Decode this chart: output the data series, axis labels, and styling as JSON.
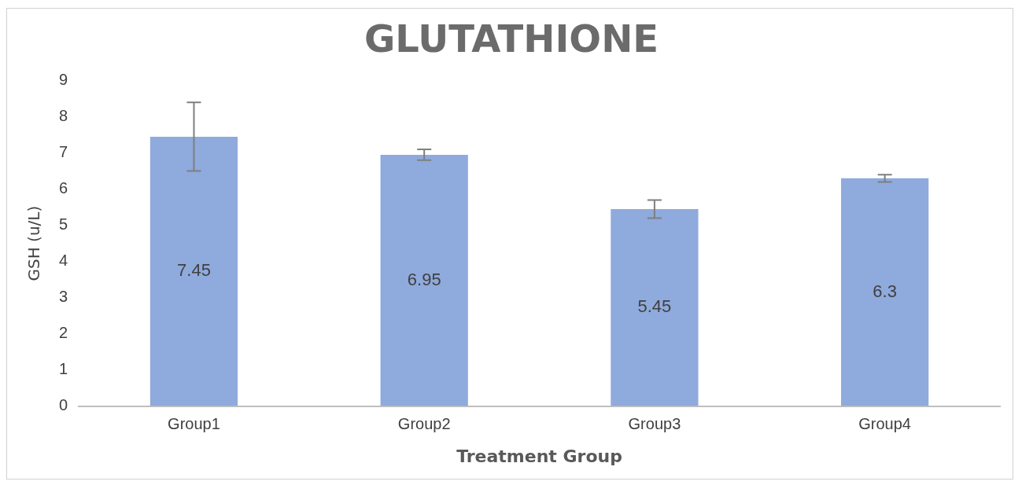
{
  "chart_data": {
    "type": "bar",
    "title": "GLUTATHIONE",
    "xlabel": "Treatment Group",
    "ylabel": "GSH (u/L)",
    "categories": [
      "Group1",
      "Group2",
      "Group3",
      "Group4"
    ],
    "values": [
      7.45,
      6.95,
      5.45,
      6.3
    ],
    "errors": [
      0.95,
      0.15,
      0.25,
      0.1
    ],
    "color": "#8faadc",
    "ylim": [
      0,
      9
    ],
    "yticks": [
      0,
      1,
      2,
      3,
      4,
      5,
      6,
      7,
      8,
      9
    ],
    "grid": false,
    "data_labels": true
  }
}
